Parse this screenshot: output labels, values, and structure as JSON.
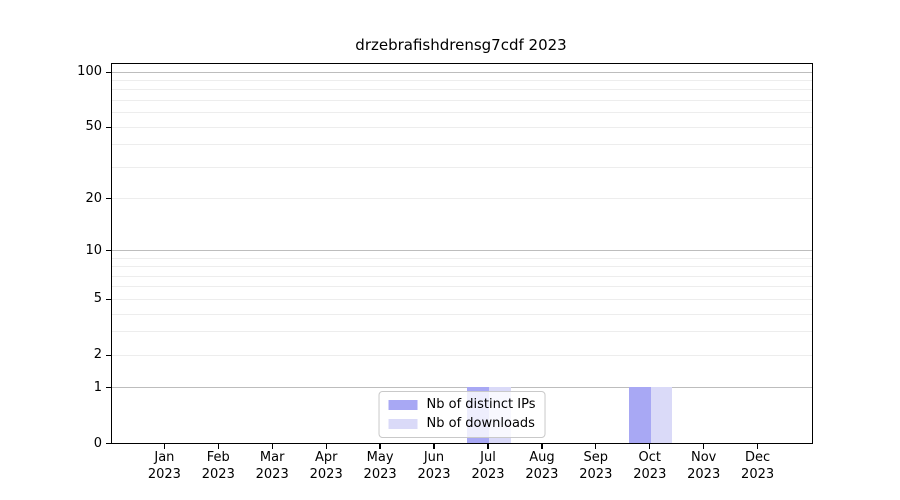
{
  "title": "drzebrafishdrensg7cdf 2023",
  "chart_data": {
    "type": "bar",
    "title": "drzebrafishdrensg7cdf 2023",
    "categories": [
      "Jan 2023",
      "Feb 2023",
      "Mar 2023",
      "Apr 2023",
      "May 2023",
      "Jun 2023",
      "Jul 2023",
      "Aug 2023",
      "Sep 2023",
      "Oct 2023",
      "Nov 2023",
      "Dec 2023"
    ],
    "series": [
      {
        "name": "Nb of distinct IPs",
        "values": [
          0,
          0,
          0,
          0,
          0,
          0,
          1,
          0,
          0,
          1,
          0,
          0
        ],
        "color": "#a8a8f4"
      },
      {
        "name": "Nb of downloads",
        "values": [
          0,
          0,
          0,
          0,
          0,
          0,
          1,
          0,
          0,
          1,
          0,
          0
        ],
        "color": "#dadaf8"
      }
    ],
    "xlabel": "",
    "ylabel": "",
    "y_axis": {
      "scale": "log1p",
      "tick_values": [
        0,
        1,
        2,
        5,
        10,
        20,
        50,
        100
      ],
      "tick_labels": [
        "0",
        "1",
        "2",
        "5",
        "10",
        "20",
        "50",
        "100"
      ],
      "axis_max": 110,
      "grid_major_values": [
        1,
        10,
        100
      ],
      "grid_minor_values": [
        2,
        3,
        4,
        5,
        6,
        7,
        8,
        9,
        20,
        30,
        40,
        50,
        60,
        70,
        80,
        90
      ]
    },
    "grid": true,
    "legend_position": "lower center"
  },
  "colors": {
    "distinct_ips": "#a8a8f4",
    "downloads": "#dadaf8",
    "grid_major": "#bdbdbd",
    "grid_minor": "#ededed",
    "axis": "#000000",
    "legend_border": "#c9c9c9"
  },
  "legend": {
    "items": [
      {
        "label": "Nb of distinct IPs"
      },
      {
        "label": "Nb of downloads"
      }
    ]
  }
}
